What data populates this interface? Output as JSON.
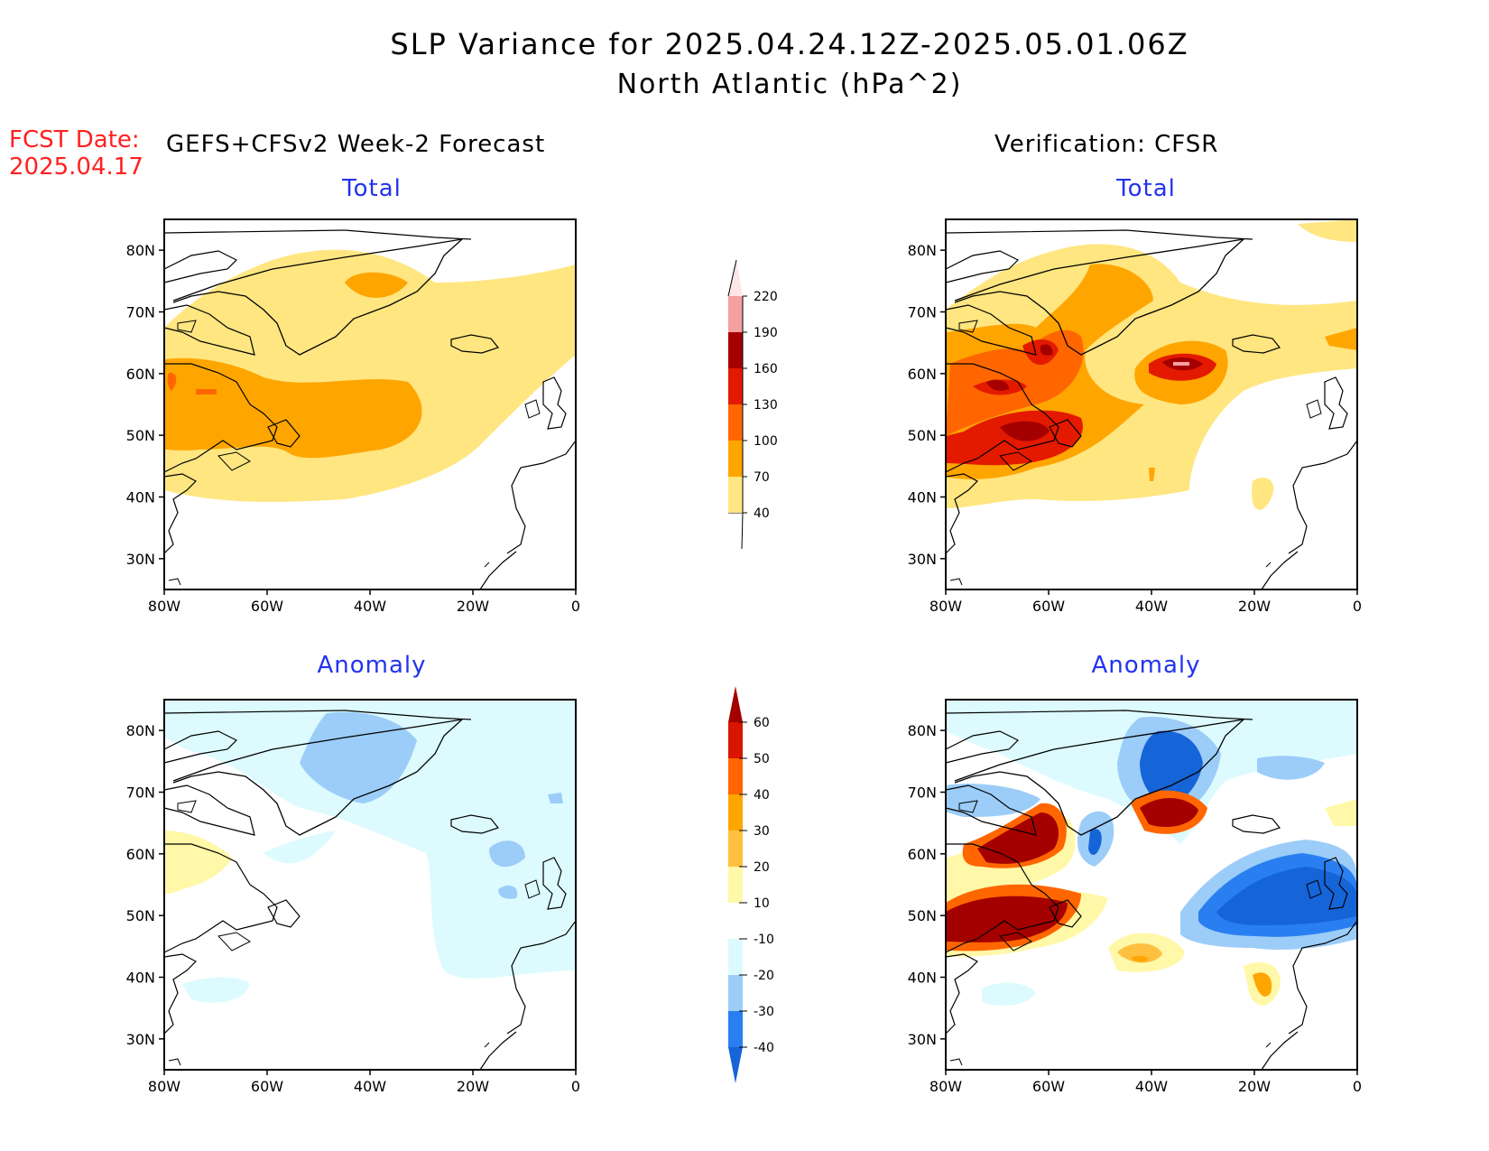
{
  "title": {
    "line1": "SLP Variance for 2025.04.24.12Z-2025.05.01.06Z",
    "line2": "North Atlantic (hPa^2)"
  },
  "fcst": {
    "label": "FCST Date:",
    "date": "2025.04.17"
  },
  "columns": {
    "left": "GEFS+CFSv2 Week-2 Forecast",
    "right": "Verification: CFSR"
  },
  "panels": {
    "top_left": "Total",
    "top_right": "Total",
    "bottom_left": "Anomaly",
    "bottom_right": "Anomaly"
  },
  "axes": {
    "lon_labels": [
      "80W",
      "60W",
      "40W",
      "20W",
      "0"
    ],
    "lat_labels": [
      "80N",
      "70N",
      "60N",
      "50N",
      "40N",
      "30N"
    ],
    "lon_range": [
      -80,
      0
    ],
    "lat_range": [
      25,
      85
    ]
  },
  "colorbars": {
    "total": {
      "levels": [
        "40",
        "70",
        "100",
        "130",
        "160",
        "190",
        "220"
      ],
      "colors": [
        "#ffe680",
        "#ffa500",
        "#ff6600",
        "#e31a00",
        "#a50000",
        "#f4a0a0",
        "#ffe6e6"
      ]
    },
    "anomaly": {
      "levels": [
        "-40",
        "-30",
        "-20",
        "-10",
        "10",
        "20",
        "30",
        "40",
        "50",
        "60"
      ],
      "colors": [
        "#1564d8",
        "#2a7ff0",
        "#9ccdf8",
        "#ddfbff",
        "#ffffff",
        "#fff8a8",
        "#ffc040",
        "#ffa500",
        "#ff6600",
        "#d81500",
        "#a50000"
      ]
    }
  }
}
